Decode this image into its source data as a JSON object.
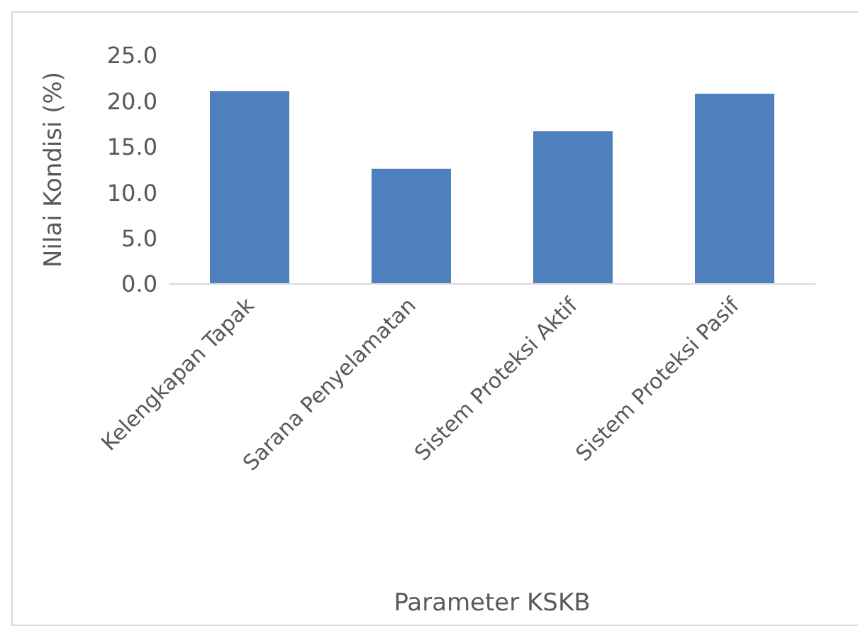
{
  "chart_data": {
    "type": "bar",
    "xlabel": "Parameter KSKB",
    "ylabel": "Nilai Kondisi (%)",
    "categories": [
      "Kelengkapan Tapak",
      "Sarana Penyelamatan",
      "Sistem Proteksi Aktif",
      "Sistem Proteksi Pasif"
    ],
    "values": [
      21.1,
      12.6,
      16.7,
      20.8
    ],
    "color": "#4e80bd",
    "ylim": [
      0,
      25
    ],
    "yticks": [
      {
        "value": 0,
        "label": "0.0"
      },
      {
        "value": 5,
        "label": "5.0"
      },
      {
        "value": 10,
        "label": "10.0"
      },
      {
        "value": 15,
        "label": "15.0"
      },
      {
        "value": 20,
        "label": "20.0"
      },
      {
        "value": 25,
        "label": "25.0"
      }
    ],
    "grid": false,
    "legend": false
  }
}
